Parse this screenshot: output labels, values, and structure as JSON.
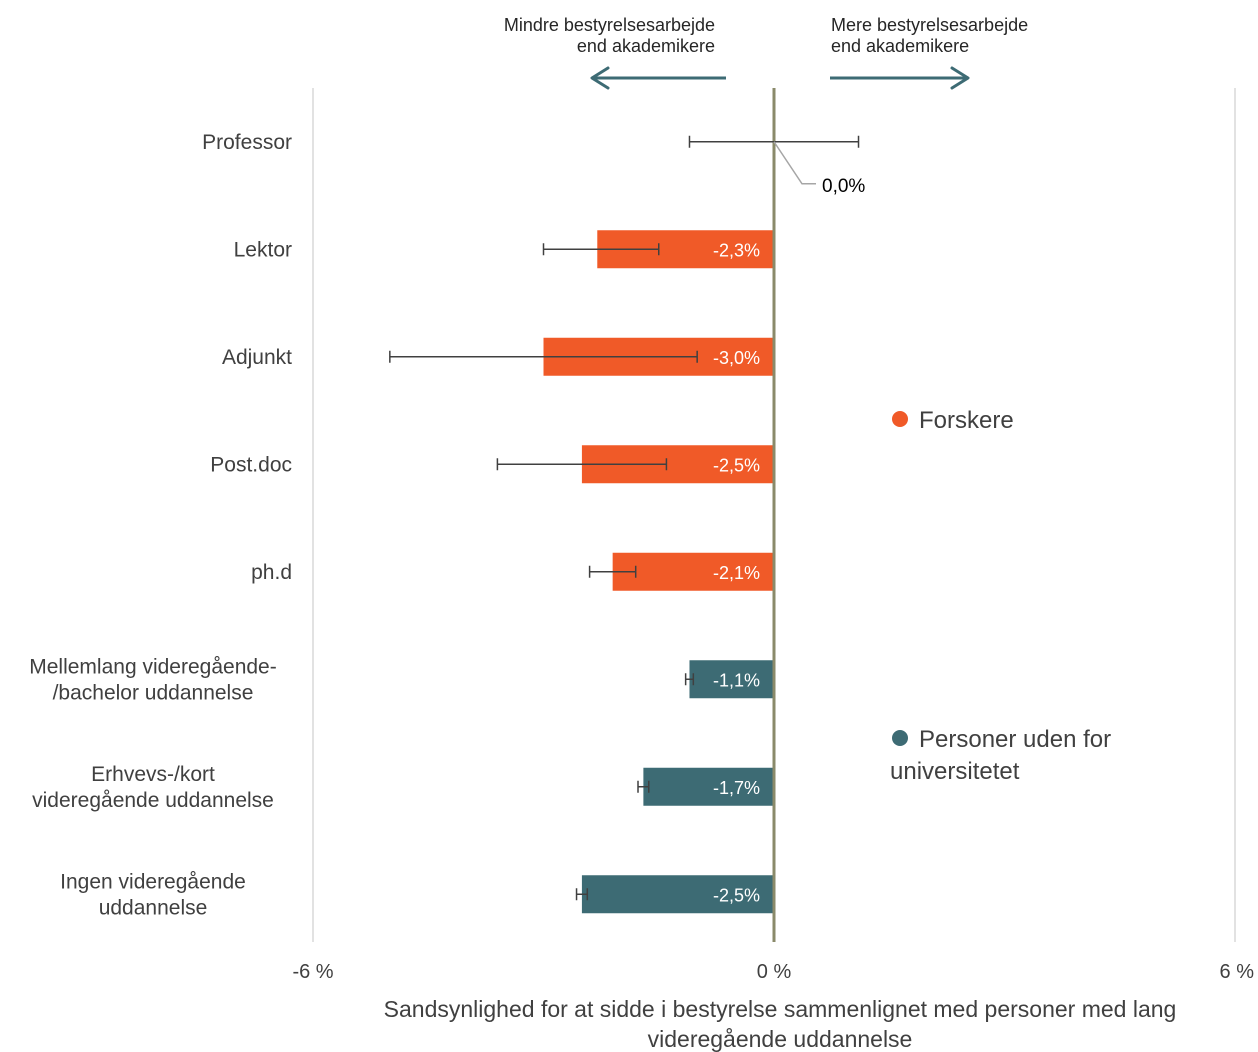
{
  "chart_data": {
    "type": "bar",
    "orientation": "horizontal",
    "xlabel_lines": [
      "Sandsynlighed for at sidde i bestyrelse sammenlignet med personer med lang",
      "videregående uddannelse"
    ],
    "xlim": [
      -6,
      6
    ],
    "x_ticks": [
      -6,
      0,
      6
    ],
    "x_tick_labels": [
      "-6 %",
      "0 %",
      "6 %"
    ],
    "grid": "vertical",
    "categories": [
      {
        "label_lines": [
          "Professor"
        ],
        "value": 0.0,
        "value_label": "0,0%",
        "err_low": -1.1,
        "err_high": 1.1,
        "group": "Forskere"
      },
      {
        "label_lines": [
          "Lektor"
        ],
        "value": -2.3,
        "value_label": "-2,3%",
        "err_low": -3.0,
        "err_high": -1.5,
        "group": "Forskere"
      },
      {
        "label_lines": [
          "Adjunkt"
        ],
        "value": -3.0,
        "value_label": "-3,0%",
        "err_low": -5.0,
        "err_high": -1.0,
        "group": "Forskere"
      },
      {
        "label_lines": [
          "Post.doc"
        ],
        "value": -2.5,
        "value_label": "-2,5%",
        "err_low": -3.6,
        "err_high": -1.4,
        "group": "Forskere"
      },
      {
        "label_lines": [
          "ph.d"
        ],
        "value": -2.1,
        "value_label": "-2,1%",
        "err_low": -2.4,
        "err_high": -1.8,
        "group": "Forskere"
      },
      {
        "label_lines": [
          "Mellemlang videregående-",
          "/bachelor uddannelse"
        ],
        "value": -1.1,
        "value_label": "-1,1%",
        "err_low": -1.15,
        "err_high": -1.05,
        "group": "Personer uden for universitetet"
      },
      {
        "label_lines": [
          "Erhvevs-/kort",
          "videregående uddannelse"
        ],
        "value": -1.7,
        "value_label": "-1,7%",
        "err_low": -1.77,
        "err_high": -1.63,
        "group": "Personer uden for universitetet"
      },
      {
        "label_lines": [
          "Ingen videregående",
          "uddannelse"
        ],
        "value": -2.5,
        "value_label": "-2,5%",
        "err_low": -2.57,
        "err_high": -2.43,
        "group": "Personer uden for universitetet"
      }
    ],
    "series": [
      {
        "name": "Forskere",
        "color": "#F05A28"
      },
      {
        "name": "Personer uden for universitetet",
        "name_lines": [
          "Personer uden for",
          "universitetet"
        ],
        "color": "#3D6B74"
      }
    ],
    "annotations": {
      "left_arrow_lines": [
        "Mindre bestyrelsesarbejde",
        "end akademikere"
      ],
      "right_arrow_lines": [
        "Mere bestyrelsesarbejde",
        "end akademikere"
      ]
    },
    "colors": {
      "zero_line": "#8A8A6A",
      "arrow": "#3D6B74",
      "gridline": "#D9D9D9",
      "error_bar": "#404040",
      "text": "#404040"
    }
  }
}
